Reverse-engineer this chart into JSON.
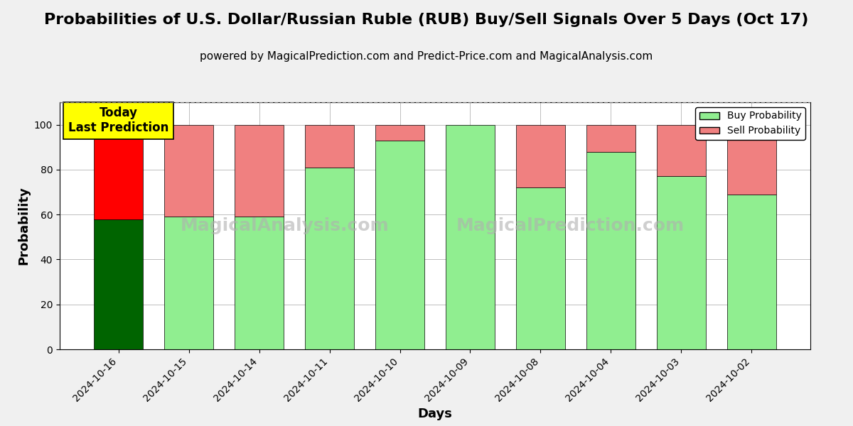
{
  "title": "Probabilities of U.S. Dollar/Russian Ruble (RUB) Buy/Sell Signals Over 5 Days (Oct 17)",
  "subtitle": "powered by MagicalPrediction.com and Predict-Price.com and MagicalAnalysis.com",
  "xlabel": "Days",
  "ylabel": "Probability",
  "dates": [
    "2024-10-16",
    "2024-10-15",
    "2024-10-14",
    "2024-10-11",
    "2024-10-10",
    "2024-10-09",
    "2024-10-08",
    "2024-10-04",
    "2024-10-03",
    "2024-10-02"
  ],
  "buy_values": [
    58,
    59,
    59,
    81,
    93,
    100,
    72,
    88,
    77,
    69
  ],
  "sell_values": [
    42,
    41,
    41,
    19,
    7,
    0,
    28,
    12,
    23,
    31
  ],
  "buy_color_today": "#006400",
  "sell_color_today": "#ff0000",
  "buy_color_normal": "#90EE90",
  "sell_color_normal": "#F08080",
  "today_annotation": "Today\nLast Prediction",
  "annotation_bg_color": "#ffff00",
  "ylim": [
    0,
    110
  ],
  "yticks": [
    0,
    20,
    40,
    60,
    80,
    100
  ],
  "dashed_line_y": 110,
  "legend_buy_label": "Buy Probability",
  "legend_sell_label": "Sell Probability",
  "watermark_color": "#c8c8c8",
  "bar_edge_color": "#000000",
  "bar_edge_width": 0.5,
  "title_fontsize": 16,
  "subtitle_fontsize": 11,
  "axis_label_fontsize": 13,
  "tick_fontsize": 10,
  "legend_fontsize": 10,
  "annotation_fontsize": 12,
  "bar_width": 0.7,
  "fig_bg_color": "#f0f0f0"
}
